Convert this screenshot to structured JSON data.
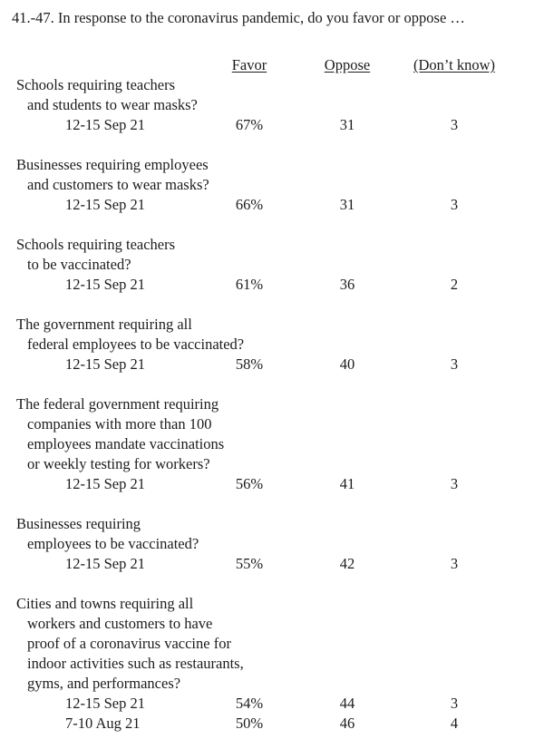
{
  "page": {
    "title": "41.-47. In response to the coronavirus pandemic, do you favor or oppose …"
  },
  "table": {
    "headers": {
      "favor": "Favor",
      "oppose": "Oppose",
      "dont_know": "(Don’t know)"
    },
    "questions": [
      {
        "lines": [
          "Schools requiring teachers",
          "and students to wear masks?"
        ],
        "rows": [
          {
            "date": "12-15 Sep 21",
            "favor": "67%",
            "oppose": "31",
            "dont_know": "3"
          }
        ]
      },
      {
        "lines": [
          "Businesses requiring employees",
          "and customers to wear masks?"
        ],
        "rows": [
          {
            "date": "12-15 Sep 21",
            "favor": "66%",
            "oppose": "31",
            "dont_know": "3"
          }
        ]
      },
      {
        "lines": [
          "Schools requiring teachers",
          "to be vaccinated?"
        ],
        "rows": [
          {
            "date": "12-15 Sep 21",
            "favor": "61%",
            "oppose": "36",
            "dont_know": "2"
          }
        ]
      },
      {
        "lines": [
          "The government requiring all",
          "federal employees to be vaccinated?"
        ],
        "rows": [
          {
            "date": "12-15 Sep 21",
            "favor": "58%",
            "oppose": "40",
            "dont_know": "3"
          }
        ]
      },
      {
        "lines": [
          "The federal government requiring",
          "companies with more than 100",
          "employees mandate vaccinations",
          "or weekly testing for workers?"
        ],
        "rows": [
          {
            "date": "12-15 Sep 21",
            "favor": "56%",
            "oppose": "41",
            "dont_know": "3"
          }
        ]
      },
      {
        "lines": [
          "Businesses requiring",
          "employees to be vaccinated?"
        ],
        "rows": [
          {
            "date": "12-15 Sep 21",
            "favor": "55%",
            "oppose": "42",
            "dont_know": "3"
          }
        ]
      },
      {
        "lines": [
          "Cities and towns requiring all",
          "workers and customers to have",
          "proof of a coronavirus vaccine for",
          "indoor activities such as restaurants,",
          "gyms, and performances?"
        ],
        "rows": [
          {
            "date": "12-15 Sep 21",
            "favor": "54%",
            "oppose": "44",
            "dont_know": "3"
          },
          {
            "date": "7-10 Aug 21",
            "favor": "50%",
            "oppose": "46",
            "dont_know": "4"
          }
        ]
      }
    ]
  },
  "colors": {
    "text": "#1c1c1c",
    "background": "#ffffff"
  }
}
